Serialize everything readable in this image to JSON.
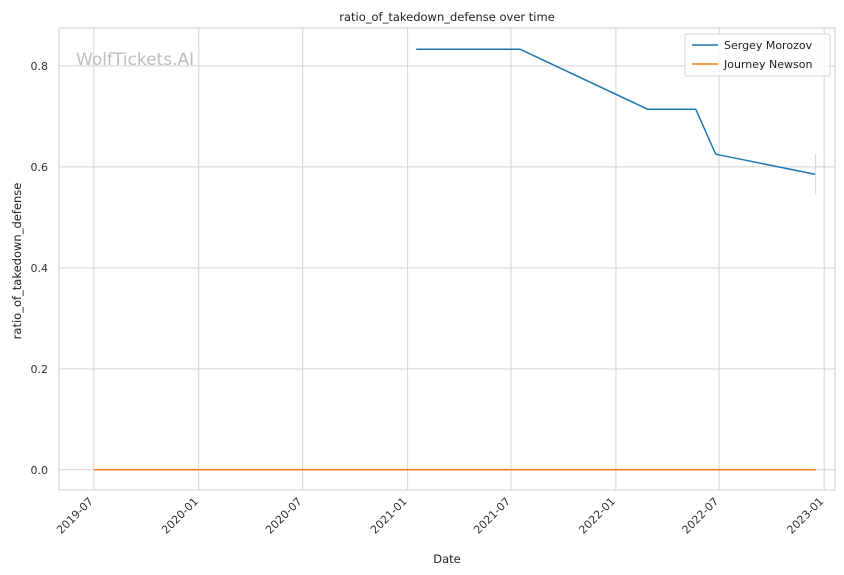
{
  "chart_data": {
    "type": "line",
    "title": "ratio_of_takedown_defense over time",
    "xlabel": "Date",
    "ylabel": "ratio_of_takedown_defense",
    "watermark": "WolfTickets.AI",
    "grid": true,
    "legend_position": "top-right",
    "x_ticks": [
      "2019-07",
      "2020-01",
      "2020-07",
      "2021-01",
      "2021-07",
      "2022-01",
      "2022-07",
      "2023-01"
    ],
    "y_ticks": [
      "0.0",
      "0.2",
      "0.4",
      "0.6",
      "0.8"
    ],
    "xlim": [
      "2019-05-01",
      "2023-01-20"
    ],
    "ylim": [
      -0.04,
      0.875
    ],
    "series": [
      {
        "name": "Sergey Morozov",
        "color": "#1f77b4",
        "points": [
          {
            "x": "2021-01-16",
            "y": 0.833
          },
          {
            "x": "2021-07-17",
            "y": 0.833
          },
          {
            "x": "2022-02-26",
            "y": 0.714
          },
          {
            "x": "2022-05-21",
            "y": 0.714
          },
          {
            "x": "2022-06-25",
            "y": 0.625
          },
          {
            "x": "2022-12-17",
            "y": 0.585
          }
        ]
      },
      {
        "name": "Journey Newson",
        "color": "#ff7f0e",
        "points": [
          {
            "x": "2019-07-01",
            "y": 0.0
          },
          {
            "x": "2022-12-17",
            "y": 0.0
          }
        ]
      }
    ]
  }
}
